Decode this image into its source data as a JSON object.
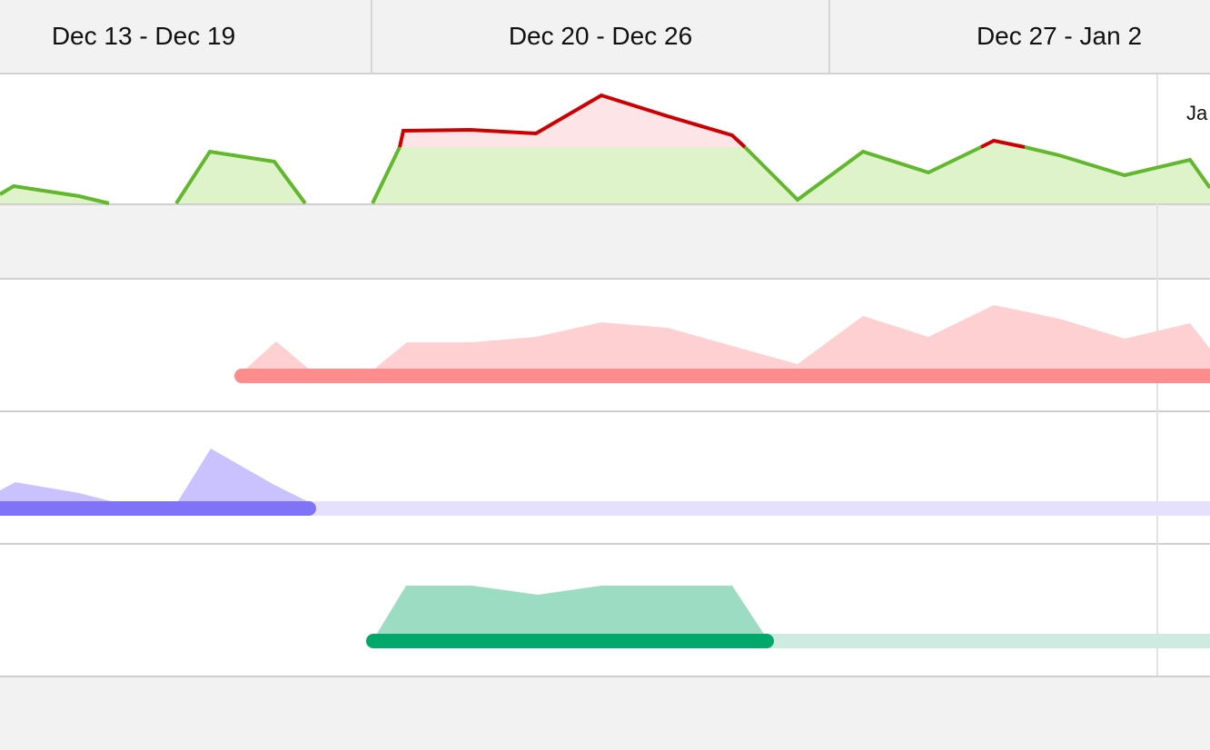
{
  "weeks": [
    {
      "label": "Dec 13 - Dec 19"
    },
    {
      "label": "Dec 20 - Dec 26"
    },
    {
      "label": "Dec 27 - Jan 2"
    }
  ],
  "today_marker": {
    "label": "Ja"
  },
  "colors": {
    "capacity_fill": "#dff3cb",
    "capacity_line": "#62b82c",
    "overload_fill": "#fde4e6",
    "overload_line": "#cc0000",
    "row1_area": "#ffd0d2",
    "row1_bar": "#fd8c8c",
    "row2_area": "#cac2ff",
    "row2_bar": "#7f74f8",
    "row2_track": "#e5e0fc",
    "row3_area": "#9bdcc3",
    "row3_bar": "#00a96b",
    "row3_track": "#cdebe0"
  }
}
